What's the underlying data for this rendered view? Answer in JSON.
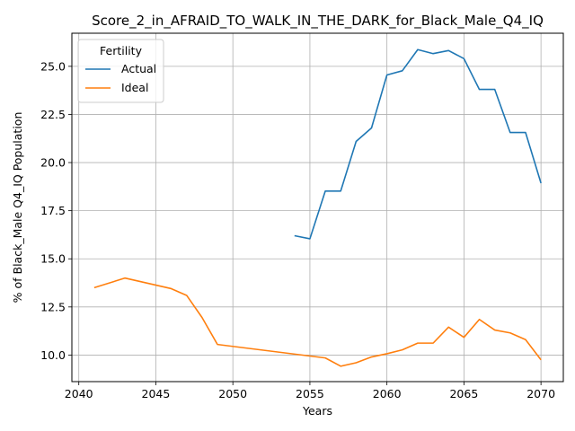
{
  "chart_data": {
    "type": "line",
    "title": "Score_2_in_AFRAID_TO_WALK_IN_THE_DARK_for_Black_Male_Q4_IQ",
    "xlabel": "Years",
    "ylabel": "% of Black_Male Q4_IQ Population",
    "xlim": [
      2039.55,
      2071.45
    ],
    "ylim": [
      8.62,
      26.72
    ],
    "xticks": [
      2040,
      2045,
      2050,
      2055,
      2060,
      2065,
      2070
    ],
    "yticks": [
      10.0,
      12.5,
      15.0,
      17.5,
      20.0,
      22.5,
      25.0
    ],
    "xtick_labels": [
      "2040",
      "2045",
      "2050",
      "2055",
      "2060",
      "2065",
      "2070"
    ],
    "ytick_labels": [
      "10.0",
      "12.5",
      "15.0",
      "17.5",
      "20.0",
      "22.5",
      "25.0"
    ],
    "grid": true,
    "legend": {
      "title": "Fertility",
      "placement": "top-left"
    },
    "series": [
      {
        "name": "Actual",
        "color": "#1f77b4",
        "x": [
          2054,
          2055,
          2056,
          2057,
          2058,
          2059,
          2060,
          2061,
          2062,
          2063,
          2064,
          2065,
          2066,
          2067,
          2068,
          2069,
          2070
        ],
        "y": [
          16.2,
          16.04,
          18.52,
          18.52,
          21.1,
          21.8,
          24.55,
          24.77,
          25.87,
          25.66,
          25.82,
          25.4,
          23.8,
          23.8,
          21.56,
          21.56,
          18.93
        ]
      },
      {
        "name": "Ideal",
        "color": "#ff7f0e",
        "x": [
          2041,
          2043,
          2046,
          2047,
          2048,
          2049,
          2055,
          2056,
          2057,
          2058,
          2059,
          2060,
          2061,
          2062,
          2063,
          2064,
          2065,
          2066,
          2067,
          2068,
          2069,
          2070
        ],
        "y": [
          13.5,
          14.0,
          13.45,
          13.1,
          11.95,
          10.55,
          9.95,
          9.85,
          9.42,
          9.6,
          9.9,
          10.07,
          10.27,
          10.62,
          10.62,
          11.45,
          10.92,
          11.85,
          11.3,
          11.15,
          10.8,
          9.75
        ]
      }
    ]
  }
}
